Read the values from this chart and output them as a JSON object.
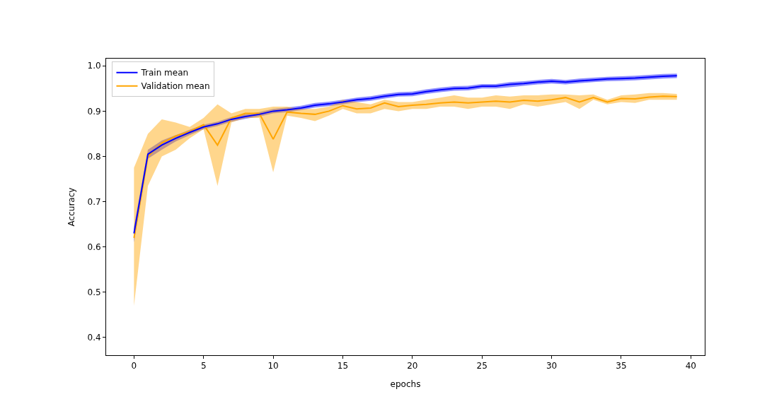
{
  "chart_data": {
    "type": "line",
    "xlabel": "epochs",
    "ylabel": "Accuracy",
    "x": [
      0,
      1,
      2,
      3,
      4,
      5,
      6,
      7,
      8,
      9,
      10,
      11,
      12,
      13,
      14,
      15,
      16,
      17,
      18,
      19,
      20,
      21,
      22,
      23,
      24,
      25,
      26,
      27,
      28,
      29,
      30,
      31,
      32,
      33,
      34,
      35,
      36,
      37,
      38,
      39
    ],
    "xlim": [
      -2,
      41
    ],
    "xticks": [
      0,
      5,
      10,
      15,
      20,
      25,
      30,
      35,
      40
    ],
    "ylim": [
      0.361,
      1.016
    ],
    "yticks": [
      {
        "value": 0.4,
        "label": "0.4"
      },
      {
        "value": 0.5,
        "label": "0.5"
      },
      {
        "value": 0.6,
        "label": "0.6"
      },
      {
        "value": 0.7,
        "label": "0.7"
      },
      {
        "value": 0.8,
        "label": "0.8"
      },
      {
        "value": 0.9,
        "label": "0.9"
      },
      {
        "value": 1.0,
        "label": "1.0"
      }
    ],
    "legend": "top left",
    "marker": "none",
    "line_style": "solid",
    "series": [
      {
        "name": "Train mean",
        "color": "#0000ff",
        "values": [
          0.63,
          0.805,
          0.825,
          0.84,
          0.853,
          0.865,
          0.872,
          0.882,
          0.888,
          0.893,
          0.9,
          0.903,
          0.907,
          0.913,
          0.916,
          0.92,
          0.925,
          0.928,
          0.933,
          0.937,
          0.938,
          0.943,
          0.947,
          0.95,
          0.951,
          0.955,
          0.955,
          0.959,
          0.961,
          0.964,
          0.966,
          0.964,
          0.967,
          0.969,
          0.971,
          0.972,
          0.973,
          0.975,
          0.977,
          0.978
        ],
        "lower": [
          0.61,
          0.795,
          0.815,
          0.833,
          0.847,
          0.86,
          0.867,
          0.877,
          0.883,
          0.888,
          0.895,
          0.898,
          0.902,
          0.908,
          0.911,
          0.915,
          0.92,
          0.923,
          0.928,
          0.932,
          0.933,
          0.938,
          0.942,
          0.945,
          0.946,
          0.95,
          0.95,
          0.953,
          0.956,
          0.959,
          0.961,
          0.959,
          0.962,
          0.964,
          0.966,
          0.967,
          0.968,
          0.97,
          0.972,
          0.973
        ],
        "upper": [
          0.645,
          0.815,
          0.835,
          0.847,
          0.859,
          0.87,
          0.877,
          0.887,
          0.893,
          0.898,
          0.905,
          0.908,
          0.912,
          0.918,
          0.921,
          0.925,
          0.93,
          0.933,
          0.938,
          0.942,
          0.943,
          0.948,
          0.952,
          0.955,
          0.956,
          0.96,
          0.96,
          0.964,
          0.966,
          0.969,
          0.971,
          0.969,
          0.972,
          0.974,
          0.976,
          0.977,
          0.978,
          0.98,
          0.982,
          0.983
        ]
      },
      {
        "name": "Validation mean",
        "color": "#ffa500",
        "values": [
          0.62,
          0.8,
          0.83,
          0.845,
          0.855,
          0.87,
          0.825,
          0.885,
          0.895,
          0.895,
          0.838,
          0.898,
          0.895,
          0.893,
          0.9,
          0.912,
          0.905,
          0.907,
          0.918,
          0.91,
          0.913,
          0.915,
          0.918,
          0.92,
          0.918,
          0.92,
          0.922,
          0.92,
          0.924,
          0.922,
          0.925,
          0.93,
          0.92,
          0.93,
          0.92,
          0.928,
          0.927,
          0.931,
          0.933,
          0.932
        ],
        "lower": [
          0.47,
          0.735,
          0.8,
          0.815,
          0.84,
          0.86,
          0.735,
          0.875,
          0.885,
          0.885,
          0.765,
          0.89,
          0.885,
          0.878,
          0.89,
          0.905,
          0.895,
          0.895,
          0.905,
          0.9,
          0.905,
          0.905,
          0.91,
          0.91,
          0.905,
          0.91,
          0.91,
          0.905,
          0.915,
          0.91,
          0.915,
          0.92,
          0.905,
          0.925,
          0.915,
          0.92,
          0.918,
          0.925,
          0.925,
          0.925
        ],
        "upper": [
          0.775,
          0.85,
          0.882,
          0.875,
          0.865,
          0.885,
          0.915,
          0.895,
          0.905,
          0.905,
          0.91,
          0.91,
          0.905,
          0.905,
          0.91,
          0.925,
          0.92,
          0.915,
          0.925,
          0.92,
          0.92,
          0.925,
          0.93,
          0.935,
          0.93,
          0.93,
          0.935,
          0.932,
          0.935,
          0.935,
          0.937,
          0.937,
          0.935,
          0.937,
          0.925,
          0.935,
          0.937,
          0.94,
          0.94,
          0.938
        ]
      }
    ]
  }
}
